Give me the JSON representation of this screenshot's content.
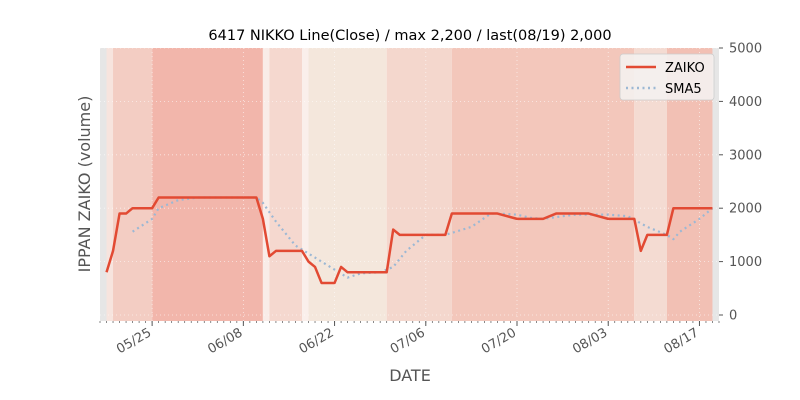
{
  "chart_data": {
    "type": "line",
    "title": "6417 NIKKO Line(Close) / max 2,200 / last(08/19) 2,000",
    "xlabel": "DATE",
    "ylabel": "IPPAN ZAIKO (volume)",
    "y_axis_side": "right",
    "ylim": [
      0,
      5000
    ],
    "y_ticks": [
      0,
      1000,
      2000,
      3000,
      4000,
      5000
    ],
    "y_tick_labels": [
      "0",
      "1000",
      "2000",
      "3000",
      "4000",
      "5000"
    ],
    "xlim": [
      "2020-05-17",
      "2020-08-20"
    ],
    "x_ticks": [
      {
        "date": "2020-05-25",
        "label": "05/25"
      },
      {
        "date": "2020-06-08",
        "label": "06/08"
      },
      {
        "date": "2020-06-22",
        "label": "06/22"
      },
      {
        "date": "2020-07-06",
        "label": "07/06"
      },
      {
        "date": "2020-07-20",
        "label": "07/20"
      },
      {
        "date": "2020-08-03",
        "label": "08/03"
      },
      {
        "date": "2020-08-17",
        "label": "08/17"
      }
    ],
    "grid": true,
    "legend": "top-right",
    "series": [
      {
        "name": "ZAIKO",
        "color": "#e24a33",
        "style": "solid",
        "points": [
          [
            "2020-05-18",
            800
          ],
          [
            "2020-05-19",
            1200
          ],
          [
            "2020-05-20",
            1900
          ],
          [
            "2020-05-21",
            1900
          ],
          [
            "2020-05-22",
            2000
          ],
          [
            "2020-05-25",
            2000
          ],
          [
            "2020-05-26",
            2200
          ],
          [
            "2020-05-27",
            2200
          ],
          [
            "2020-05-28",
            2200
          ],
          [
            "2020-05-29",
            2200
          ],
          [
            "2020-06-01",
            2200
          ],
          [
            "2020-06-02",
            2200
          ],
          [
            "2020-06-03",
            2200
          ],
          [
            "2020-06-04",
            2200
          ],
          [
            "2020-06-05",
            2200
          ],
          [
            "2020-06-08",
            2200
          ],
          [
            "2020-06-09",
            2200
          ],
          [
            "2020-06-10",
            2200
          ],
          [
            "2020-06-11",
            1800
          ],
          [
            "2020-06-12",
            1100
          ],
          [
            "2020-06-13",
            1200
          ],
          [
            "2020-06-15",
            1200
          ],
          [
            "2020-06-16",
            1200
          ],
          [
            "2020-06-17",
            1200
          ],
          [
            "2020-06-18",
            1000
          ],
          [
            "2020-06-19",
            900
          ],
          [
            "2020-06-20",
            600
          ],
          [
            "2020-06-22",
            600
          ],
          [
            "2020-06-23",
            900
          ],
          [
            "2020-06-24",
            800
          ],
          [
            "2020-06-25",
            800
          ],
          [
            "2020-06-26",
            800
          ],
          [
            "2020-06-29",
            800
          ],
          [
            "2020-06-30",
            800
          ],
          [
            "2020-07-01",
            1600
          ],
          [
            "2020-07-02",
            1500
          ],
          [
            "2020-07-03",
            1500
          ],
          [
            "2020-07-06",
            1500
          ],
          [
            "2020-07-07",
            1500
          ],
          [
            "2020-07-08",
            1500
          ],
          [
            "2020-07-09",
            1500
          ],
          [
            "2020-07-10",
            1900
          ],
          [
            "2020-07-13",
            1900
          ],
          [
            "2020-07-14",
            1900
          ],
          [
            "2020-07-15",
            1900
          ],
          [
            "2020-07-16",
            1900
          ],
          [
            "2020-07-17",
            1900
          ],
          [
            "2020-07-20",
            1800
          ],
          [
            "2020-07-21",
            1800
          ],
          [
            "2020-07-22",
            1800
          ],
          [
            "2020-07-23",
            1800
          ],
          [
            "2020-07-24",
            1800
          ],
          [
            "2020-07-26",
            1900
          ],
          [
            "2020-07-27",
            1900
          ],
          [
            "2020-07-28",
            1900
          ],
          [
            "2020-07-29",
            1900
          ],
          [
            "2020-07-30",
            1900
          ],
          [
            "2020-07-31",
            1900
          ],
          [
            "2020-08-03",
            1800
          ],
          [
            "2020-08-04",
            1800
          ],
          [
            "2020-08-05",
            1800
          ],
          [
            "2020-08-06",
            1800
          ],
          [
            "2020-08-07",
            1800
          ],
          [
            "2020-08-08",
            1200
          ],
          [
            "2020-08-09",
            1500
          ],
          [
            "2020-08-10",
            1500
          ],
          [
            "2020-08-11",
            1500
          ],
          [
            "2020-08-12",
            1500
          ],
          [
            "2020-08-13",
            2000
          ],
          [
            "2020-08-14",
            2000
          ],
          [
            "2020-08-17",
            2000
          ],
          [
            "2020-08-18",
            2000
          ],
          [
            "2020-08-19",
            2000
          ]
        ]
      },
      {
        "name": "SMA5",
        "color": "#9cb8d4",
        "style": "dotted",
        "points": [
          [
            "2020-05-22",
            1560
          ],
          [
            "2020-05-25",
            1800
          ],
          [
            "2020-05-26",
            2000
          ],
          [
            "2020-05-29",
            2150
          ],
          [
            "2020-06-01",
            2200
          ],
          [
            "2020-06-05",
            2200
          ],
          [
            "2020-06-10",
            2200
          ],
          [
            "2020-06-11",
            2100
          ],
          [
            "2020-06-13",
            1750
          ],
          [
            "2020-06-16",
            1300
          ],
          [
            "2020-06-18",
            1150
          ],
          [
            "2020-06-20",
            1000
          ],
          [
            "2020-06-22",
            850
          ],
          [
            "2020-06-24",
            700
          ],
          [
            "2020-06-26",
            780
          ],
          [
            "2020-06-29",
            800
          ],
          [
            "2020-07-01",
            900
          ],
          [
            "2020-07-03",
            1200
          ],
          [
            "2020-07-06",
            1500
          ],
          [
            "2020-07-09",
            1500
          ],
          [
            "2020-07-13",
            1650
          ],
          [
            "2020-07-16",
            1900
          ],
          [
            "2020-07-17",
            1900
          ],
          [
            "2020-07-20",
            1880
          ],
          [
            "2020-07-22",
            1820
          ],
          [
            "2020-07-24",
            1800
          ],
          [
            "2020-07-27",
            1850
          ],
          [
            "2020-07-29",
            1880
          ],
          [
            "2020-08-03",
            1880
          ],
          [
            "2020-08-06",
            1850
          ],
          [
            "2020-08-09",
            1650
          ],
          [
            "2020-08-12",
            1500
          ],
          [
            "2020-08-13",
            1420
          ],
          [
            "2020-08-14",
            1560
          ],
          [
            "2020-08-17",
            1800
          ],
          [
            "2020-08-19",
            2000
          ]
        ]
      }
    ],
    "background_bands": [
      {
        "start": "2020-05-17",
        "end": "2020-05-18",
        "color": "#e6e6e6"
      },
      {
        "start": "2020-05-18",
        "end": "2020-05-19",
        "color": "#f7e4de"
      },
      {
        "start": "2020-05-19",
        "end": "2020-05-25",
        "color": "#f3cdc3"
      },
      {
        "start": "2020-05-25",
        "end": "2020-06-11",
        "color": "#f2b6ab"
      },
      {
        "start": "2020-06-11",
        "end": "2020-06-12",
        "color": "#f9ece8"
      },
      {
        "start": "2020-06-12",
        "end": "2020-06-17",
        "color": "#f5d8cf"
      },
      {
        "start": "2020-06-17",
        "end": "2020-06-18",
        "color": "#faefeb"
      },
      {
        "start": "2020-06-18",
        "end": "2020-06-30",
        "color": "#f4e7dc"
      },
      {
        "start": "2020-06-30",
        "end": "2020-07-10",
        "color": "#f4d7cd"
      },
      {
        "start": "2020-07-10",
        "end": "2020-08-07",
        "color": "#f3c7bb"
      },
      {
        "start": "2020-08-07",
        "end": "2020-08-12",
        "color": "#f4dbd2"
      },
      {
        "start": "2020-08-12",
        "end": "2020-08-19",
        "color": "#f2c0b4"
      },
      {
        "start": "2020-08-19",
        "end": "2020-08-20",
        "color": "#e6e6e6"
      }
    ]
  }
}
